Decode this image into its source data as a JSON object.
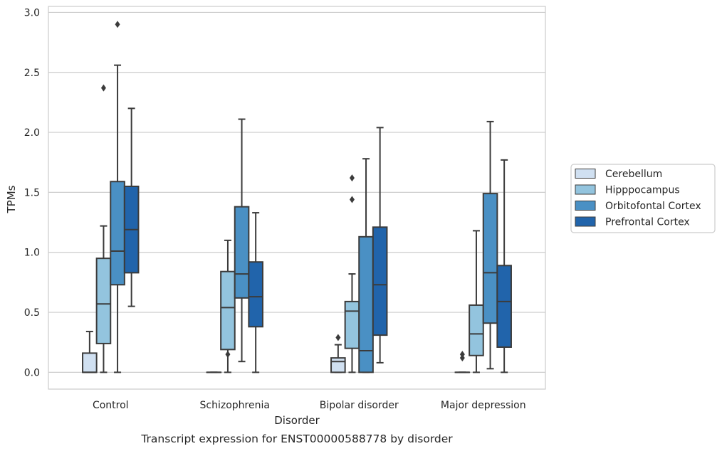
{
  "chart_data": {
    "type": "box",
    "caption": "Transcript expression for ENST00000588778 by disorder",
    "xlabel": "Disorder",
    "ylabel": "TPMs",
    "ylim": [
      -0.14,
      3.05
    ],
    "yticks": [
      0.0,
      0.5,
      1.0,
      1.5,
      2.0,
      2.5,
      3.0
    ],
    "ytick_labels": [
      "0.0",
      "0.5",
      "1.0",
      "1.5",
      "2.0",
      "2.5",
      "3.0"
    ],
    "grid": "horizontal",
    "legend_position": "right",
    "categories": [
      "Control",
      "Schizophrenia",
      "Bipolar disorder",
      "Major depression"
    ],
    "series": [
      {
        "name": "Cerebellum",
        "color": "#d0e0f1",
        "boxes": [
          {
            "whisker_low": 0.0,
            "q1": 0.0,
            "median": 0.0,
            "q3": 0.16,
            "whisker_high": 0.34,
            "outliers": []
          },
          {
            "whisker_low": 0.0,
            "q1": 0.0,
            "median": 0.0,
            "q3": 0.0,
            "whisker_high": 0.0,
            "outliers": []
          },
          {
            "whisker_low": 0.0,
            "q1": 0.0,
            "median": 0.09,
            "q3": 0.12,
            "whisker_high": 0.23,
            "outliers": [
              0.29
            ]
          },
          {
            "whisker_low": 0.0,
            "q1": 0.0,
            "median": 0.0,
            "q3": 0.0,
            "whisker_high": 0.0,
            "outliers": [
              0.12,
              0.15
            ]
          }
        ]
      },
      {
        "name": "Hipppocampus",
        "color": "#93c4de",
        "boxes": [
          {
            "whisker_low": 0.0,
            "q1": 0.24,
            "median": 0.57,
            "q3": 0.95,
            "whisker_high": 1.22,
            "outliers": [
              2.37
            ]
          },
          {
            "whisker_low": 0.0,
            "q1": 0.19,
            "median": 0.54,
            "q3": 0.84,
            "whisker_high": 1.1,
            "outliers": [
              0.15
            ]
          },
          {
            "whisker_low": 0.0,
            "q1": 0.2,
            "median": 0.51,
            "q3": 0.59,
            "whisker_high": 0.82,
            "outliers": [
              1.44,
              1.62
            ]
          },
          {
            "whisker_low": 0.0,
            "q1": 0.14,
            "median": 0.32,
            "q3": 0.56,
            "whisker_high": 1.18,
            "outliers": []
          }
        ]
      },
      {
        "name": "Orbitofontal Cortex",
        "color": "#4a90c4",
        "boxes": [
          {
            "whisker_low": 0.0,
            "q1": 0.73,
            "median": 1.01,
            "q3": 1.59,
            "whisker_high": 2.56,
            "outliers": [
              2.9
            ]
          },
          {
            "whisker_low": 0.09,
            "q1": 0.62,
            "median": 0.82,
            "q3": 1.38,
            "whisker_high": 2.11,
            "outliers": []
          },
          {
            "whisker_low": 0.0,
            "q1": 0.0,
            "median": 0.18,
            "q3": 1.13,
            "whisker_high": 1.78,
            "outliers": []
          },
          {
            "whisker_low": 0.03,
            "q1": 0.41,
            "median": 0.83,
            "q3": 1.49,
            "whisker_high": 2.09,
            "outliers": []
          }
        ]
      },
      {
        "name": "Prefrontal Cortex",
        "color": "#2164ab",
        "boxes": [
          {
            "whisker_low": 0.55,
            "q1": 0.83,
            "median": 1.19,
            "q3": 1.55,
            "whisker_high": 2.2,
            "outliers": []
          },
          {
            "whisker_low": 0.0,
            "q1": 0.38,
            "median": 0.63,
            "q3": 0.92,
            "whisker_high": 1.33,
            "outliers": []
          },
          {
            "whisker_low": 0.08,
            "q1": 0.31,
            "median": 0.73,
            "q3": 1.21,
            "whisker_high": 2.04,
            "outliers": []
          },
          {
            "whisker_low": 0.0,
            "q1": 0.21,
            "median": 0.59,
            "q3": 0.89,
            "whisker_high": 1.77,
            "outliers": []
          }
        ]
      }
    ]
  }
}
